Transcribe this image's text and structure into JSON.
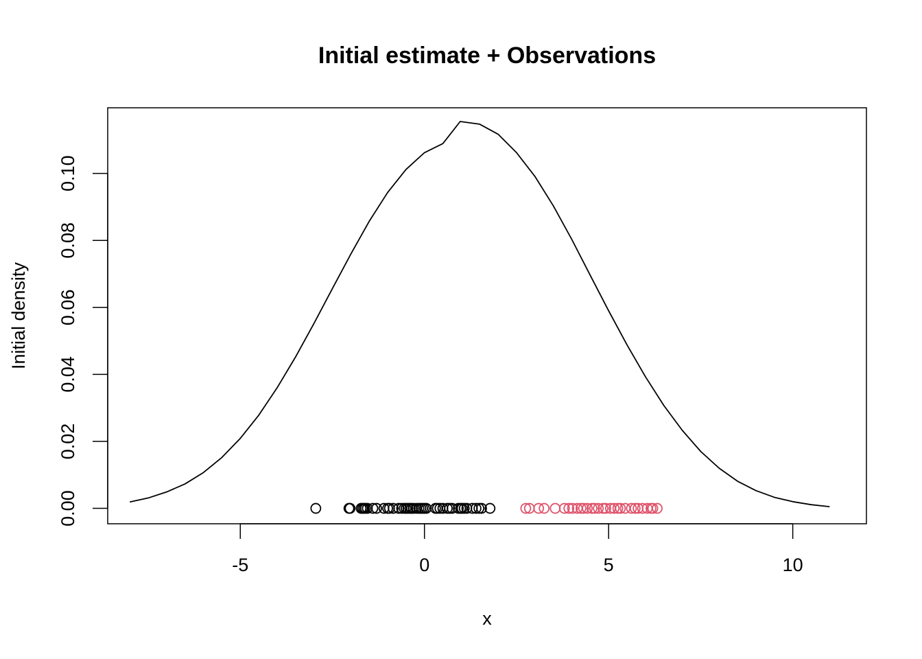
{
  "chart_data": {
    "type": "line",
    "title": "Initial estimate + Observations",
    "xlabel": "x",
    "ylabel": "Initial density",
    "xlim": [
      -8.6,
      12.0
    ],
    "ylim": [
      -0.0046,
      0.1196
    ],
    "x_ticks": [
      {
        "value": -5,
        "label": "-5"
      },
      {
        "value": 0,
        "label": "0"
      },
      {
        "value": 5,
        "label": "5"
      },
      {
        "value": 10,
        "label": "10"
      }
    ],
    "y_ticks": [
      {
        "value": 0.0,
        "label": "0.00"
      },
      {
        "value": 0.02,
        "label": "0.02"
      },
      {
        "value": 0.04,
        "label": "0.04"
      },
      {
        "value": 0.06,
        "label": "0.06"
      },
      {
        "value": 0.08,
        "label": "0.08"
      },
      {
        "value": 0.1,
        "label": "0.10"
      }
    ],
    "grid": false,
    "legend": "none",
    "series": [
      {
        "type": "line",
        "color": "#000000",
        "x": [
          -8.0,
          -7.5,
          -7.0,
          -6.5,
          -6.0,
          -5.5,
          -5.0,
          -4.5,
          -4.0,
          -3.5,
          -3.0,
          -2.5,
          -2.0,
          -1.5,
          -1.0,
          -0.5,
          0.0,
          0.5,
          0.97,
          1.5,
          2.0,
          2.5,
          3.0,
          3.5,
          4.0,
          4.5,
          5.0,
          5.5,
          6.0,
          6.5,
          7.0,
          7.5,
          8.0,
          8.5,
          9.0,
          9.5,
          10.0,
          10.5,
          11.0
        ],
        "y": [
          0.0019,
          0.0031,
          0.0049,
          0.0073,
          0.0107,
          0.0152,
          0.0209,
          0.0278,
          0.036,
          0.0452,
          0.0552,
          0.0656,
          0.0759,
          0.0857,
          0.0943,
          0.1012,
          0.1062,
          0.1089,
          0.1155,
          0.1147,
          0.1117,
          0.1062,
          0.0991,
          0.0903,
          0.0803,
          0.0696,
          0.059,
          0.0488,
          0.0393,
          0.0307,
          0.0233,
          0.017,
          0.012,
          0.0081,
          0.0053,
          0.0033,
          0.002,
          0.0011,
          0.0005
        ]
      },
      {
        "type": "scatter",
        "color": "#000000",
        "x": [
          -2.95,
          -2.05,
          -2.02,
          -1.72,
          -1.68,
          -1.64,
          -1.6,
          -1.55,
          -1.4,
          -1.3,
          -1.1,
          -1.0,
          -0.95,
          -0.85,
          -0.7,
          -0.62,
          -0.55,
          -0.5,
          -0.45,
          -0.4,
          -0.35,
          -0.3,
          -0.22,
          -0.15,
          -0.1,
          -0.05,
          0.0,
          0.05,
          0.3,
          0.35,
          0.42,
          0.5,
          0.62,
          0.68,
          0.75,
          0.92,
          0.98,
          1.02,
          1.08,
          1.15,
          1.3,
          1.4,
          1.48,
          1.55,
          1.78
        ],
        "y": [
          0,
          0,
          0,
          0,
          0,
          0,
          0,
          0,
          0,
          0,
          0,
          0,
          0,
          0,
          0,
          0,
          0,
          0,
          0,
          0,
          0,
          0,
          0,
          0,
          0,
          0,
          0,
          0,
          0,
          0,
          0,
          0,
          0,
          0,
          0,
          0,
          0,
          0,
          0,
          0,
          0,
          0,
          0,
          0,
          0
        ]
      },
      {
        "type": "scatter",
        "color": "#DF536B",
        "x": [
          2.75,
          2.85,
          3.1,
          3.25,
          3.55,
          3.8,
          3.92,
          4.02,
          4.15,
          4.25,
          4.32,
          4.42,
          4.55,
          4.62,
          4.72,
          4.85,
          4.92,
          5.05,
          5.15,
          5.25,
          5.32,
          5.45,
          5.62,
          5.72,
          5.8,
          5.92,
          6.05,
          6.15,
          6.2,
          6.32
        ],
        "y": [
          0,
          0,
          0,
          0,
          0,
          0,
          0,
          0,
          0,
          0,
          0,
          0,
          0,
          0,
          0,
          0,
          0,
          0,
          0,
          0,
          0,
          0,
          0,
          0,
          0,
          0,
          0,
          0,
          0,
          0
        ]
      }
    ]
  }
}
